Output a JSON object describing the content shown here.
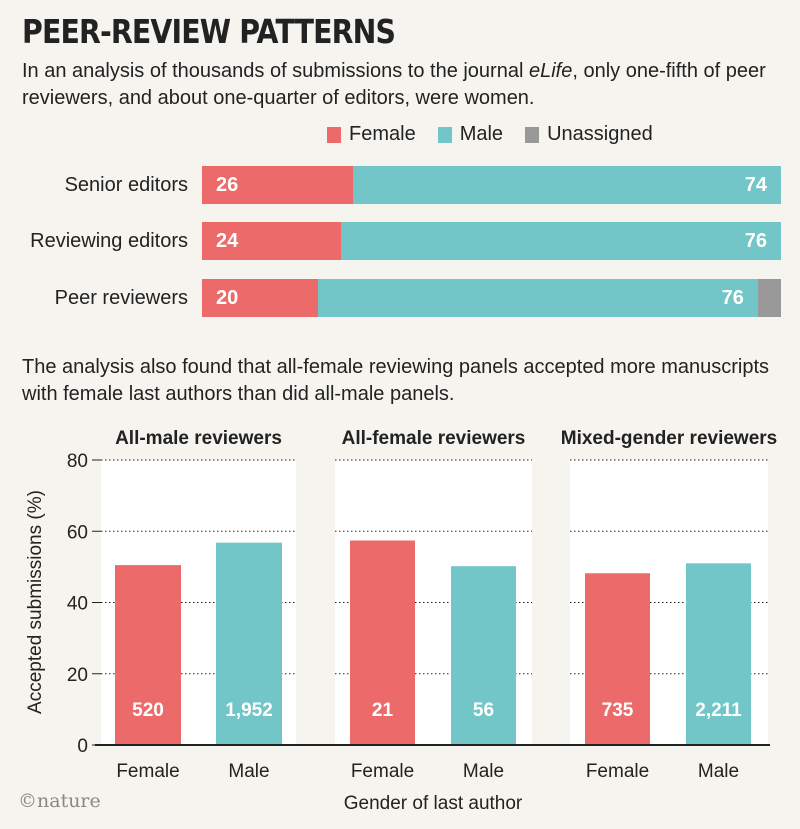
{
  "title": "PEER-REVIEW PATTERNS",
  "subtitle_parts": [
    "In an analysis of thousands of submissions to the journal ",
    "eLife",
    ", only one-fifth of peer reviewers, and about one-quarter of editors, were women."
  ],
  "colors": {
    "female": "#ed6a6a",
    "male": "#72c6c7",
    "unassigned": "#999999",
    "background": "#f6f4ee",
    "panel": "#ffffff"
  },
  "legend": {
    "female": "Female",
    "male": "Male",
    "unassigned": "Unassigned"
  },
  "note": "The analysis also found that all-female reviewing panels accepted more manuscripts with female last authors than did all-male panels.",
  "footer": "©nature",
  "chart_data": [
    {
      "type": "bar",
      "orientation": "horizontal-stacked",
      "categories": [
        "Senior editors",
        "Reviewing editors",
        "Peer reviewers"
      ],
      "series": [
        {
          "name": "Female",
          "values": [
            26,
            24,
            20
          ]
        },
        {
          "name": "Male",
          "values": [
            74,
            76,
            76
          ]
        },
        {
          "name": "Unassigned",
          "values": [
            0,
            0,
            4
          ]
        }
      ],
      "xlim": [
        0,
        100
      ]
    },
    {
      "type": "bar",
      "panels": [
        {
          "title": "All-male reviewers",
          "categories": [
            "Female",
            "Male"
          ],
          "values": [
            50.5,
            56.8
          ],
          "counts": [
            "520",
            "1,952"
          ]
        },
        {
          "title": "All-female reviewers",
          "categories": [
            "Female",
            "Male"
          ],
          "values": [
            57.4,
            50.2
          ],
          "counts": [
            "21",
            "56"
          ]
        },
        {
          "title": "Mixed-gender reviewers",
          "categories": [
            "Female",
            "Male"
          ],
          "values": [
            48.2,
            51.0
          ],
          "counts": [
            "735",
            "2,211"
          ]
        }
      ],
      "ylabel": "Accepted submissions (%)",
      "xlabel": "Gender of last author",
      "ylim": [
        0,
        80
      ],
      "yticks": [
        "0",
        "20",
        "40",
        "60",
        "80"
      ]
    }
  ]
}
